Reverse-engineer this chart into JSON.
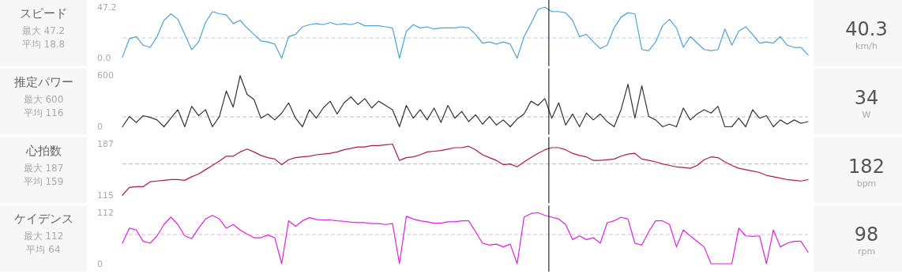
{
  "chart_data": [
    {
      "type": "line",
      "title": "スピード",
      "annotations": [
        "最大 47.2",
        "平均 18.8",
        "40.3",
        "km/h"
      ],
      "categories": [
        null,
        null,
        null,
        null,
        null,
        null,
        null,
        null,
        null,
        null,
        null,
        null,
        null,
        null,
        null,
        null,
        null,
        null,
        null,
        null,
        null,
        null,
        null,
        null,
        null,
        null,
        null,
        null,
        null,
        null,
        null,
        null,
        null,
        null,
        null,
        null,
        null,
        null,
        null,
        null,
        null,
        null,
        null,
        null,
        null,
        null,
        null,
        null,
        null,
        null,
        null,
        null,
        null,
        null,
        null,
        null,
        null,
        null,
        null,
        null,
        null,
        null,
        null,
        null,
        null,
        null,
        null,
        null,
        null,
        null,
        null,
        null,
        null,
        null,
        null,
        null,
        null,
        null,
        null,
        null,
        null,
        null,
        null,
        null,
        null,
        null,
        null,
        null,
        null,
        null,
        null,
        null,
        null,
        null,
        null,
        null,
        null,
        null,
        null,
        null
      ],
      "ylim": [
        0,
        47.2
      ],
      "yticks": [
        {
          "value": 0,
          "label": "0.0"
        },
        47.2
      ],
      "series": [
        {
          "color": "#4ba3d6",
          "values": [
            1,
            18,
            20,
            12,
            10,
            20,
            35,
            41,
            36,
            22,
            8,
            15,
            33,
            43,
            41,
            40,
            32,
            35,
            28,
            22,
            16,
            15,
            13,
            0,
            20,
            22,
            29,
            31,
            32,
            31,
            33,
            31,
            32,
            31,
            33,
            30,
            30,
            30,
            29,
            28,
            0,
            25,
            31,
            28,
            29,
            27,
            28,
            28,
            28,
            29,
            28,
            22,
            14,
            15,
            13,
            15,
            13,
            0,
            20,
            32,
            45,
            47.2,
            43,
            43,
            42,
            35,
            20,
            22,
            15,
            9,
            12,
            28,
            38,
            42,
            41,
            8,
            7,
            15,
            30,
            36,
            28,
            10,
            20,
            14,
            8,
            7,
            8,
            27,
            12,
            25,
            29,
            22,
            14,
            15,
            14,
            20,
            12,
            10,
            10,
            3
          ]
        }
      ],
      "ref_lines": [
        {
          "axis": "y",
          "value": 18.8,
          "color": "#a9d6ee",
          "line_style": "dashed"
        }
      ]
    },
    {
      "type": "line",
      "title": "推定パワー",
      "annotations": [
        "最大 600",
        "平均 116",
        "34",
        "W"
      ],
      "categories": [
        null,
        null,
        null,
        null,
        null,
        null,
        null,
        null,
        null,
        null,
        null,
        null,
        null,
        null,
        null,
        null,
        null,
        null,
        null,
        null,
        null,
        null,
        null,
        null,
        null,
        null,
        null,
        null,
        null,
        null,
        null,
        null,
        null,
        null,
        null,
        null,
        null,
        null,
        null,
        null,
        null,
        null,
        null,
        null,
        null,
        null,
        null,
        null,
        null,
        null,
        null,
        null,
        null,
        null,
        null,
        null,
        null,
        null,
        null,
        null,
        null,
        null,
        null,
        null,
        null,
        null,
        null,
        null,
        null,
        null,
        null,
        null,
        null,
        null,
        null,
        null,
        null,
        null,
        null,
        null,
        null,
        null,
        null,
        null,
        null,
        null,
        null,
        null,
        null,
        null,
        null,
        null,
        null,
        null,
        null,
        null,
        null,
        null,
        null,
        null
      ],
      "ylim": [
        0,
        600
      ],
      "yticks": [
        0,
        600
      ],
      "series": [
        {
          "color": "#333333",
          "values": [
            0,
            120,
            50,
            130,
            110,
            80,
            0,
            100,
            200,
            0,
            240,
            130,
            200,
            0,
            120,
            420,
            230,
            600,
            380,
            320,
            100,
            150,
            80,
            160,
            280,
            100,
            0,
            200,
            100,
            220,
            300,
            150,
            280,
            350,
            260,
            330,
            220,
            300,
            250,
            200,
            0,
            250,
            100,
            200,
            80,
            220,
            50,
            250,
            100,
            180,
            60,
            140,
            30,
            120,
            20,
            80,
            0,
            90,
            150,
            300,
            250,
            330,
            100,
            280,
            20,
            150,
            0,
            160,
            80,
            150,
            60,
            0,
            200,
            500,
            100,
            480,
            120,
            80,
            0,
            30,
            0,
            220,
            80,
            150,
            200,
            160,
            240,
            0,
            0,
            100,
            0,
            200,
            100,
            130,
            0,
            80,
            30,
            80,
            40,
            60
          ]
        }
      ],
      "ref_lines": [
        {
          "axis": "y",
          "value": 116,
          "color": "#bbbbbb",
          "line_style": "dashed"
        }
      ]
    },
    {
      "type": "line",
      "title": "心拍数",
      "annotations": [
        "最大 187",
        "平均 159",
        "182",
        "bpm"
      ],
      "categories": [
        null,
        null,
        null,
        null,
        null,
        null,
        null,
        null,
        null,
        null,
        null,
        null,
        null,
        null,
        null,
        null,
        null,
        null,
        null,
        null,
        null,
        null,
        null,
        null,
        null,
        null,
        null,
        null,
        null,
        null,
        null,
        null,
        null,
        null,
        null,
        null,
        null,
        null,
        null,
        null,
        null,
        null,
        null,
        null,
        null,
        null,
        null,
        null,
        null,
        null,
        null,
        null,
        null,
        null,
        null,
        null,
        null,
        null,
        null,
        null,
        null,
        null,
        null,
        null,
        null,
        null,
        null,
        null,
        null,
        null,
        null,
        null,
        null,
        null,
        null,
        null,
        null,
        null,
        null,
        null,
        null,
        null,
        null,
        null,
        null,
        null,
        null,
        null,
        null,
        null,
        null,
        null,
        null,
        null,
        null,
        null,
        null,
        null,
        null,
        null
      ],
      "ylim": [
        115,
        187
      ],
      "yticks": [
        115,
        187
      ],
      "series": [
        {
          "color": "#b0184a",
          "values": [
            115,
            126,
            127,
            127,
            134,
            135,
            136,
            137,
            137,
            136,
            141,
            145,
            151,
            157,
            163,
            170,
            170,
            176,
            180,
            176,
            171,
            168,
            166,
            158,
            165,
            168,
            169,
            170,
            172,
            173,
            174,
            176,
            179,
            181,
            183,
            183,
            185,
            185,
            186,
            187,
            164,
            168,
            169,
            172,
            176,
            177,
            178,
            180,
            182,
            182,
            184,
            179,
            172,
            168,
            164,
            158,
            159,
            155,
            162,
            168,
            174,
            179,
            182,
            182,
            179,
            174,
            171,
            169,
            164,
            164,
            165,
            166,
            170,
            173,
            174,
            166,
            164,
            162,
            159,
            157,
            155,
            154,
            153,
            157,
            165,
            169,
            168,
            162,
            157,
            153,
            151,
            149,
            147,
            143,
            141,
            139,
            137,
            136,
            135,
            137
          ]
        }
      ],
      "ref_lines": [
        {
          "axis": "y",
          "value": 159,
          "color": "#e3a3b8",
          "line_style": "dashed"
        }
      ]
    },
    {
      "type": "line",
      "title": "ケイデンス",
      "annotations": [
        "最大 112",
        "平均 64",
        "98",
        "rpm"
      ],
      "categories": [
        null,
        null,
        null,
        null,
        null,
        null,
        null,
        null,
        null,
        null,
        null,
        null,
        null,
        null,
        null,
        null,
        null,
        null,
        null,
        null,
        null,
        null,
        null,
        null,
        null,
        null,
        null,
        null,
        null,
        null,
        null,
        null,
        null,
        null,
        null,
        null,
        null,
        null,
        null,
        null,
        null,
        null,
        null,
        null,
        null,
        null,
        null,
        null,
        null,
        null,
        null,
        null,
        null,
        null,
        null,
        null,
        null,
        null,
        null,
        null,
        null,
        null,
        null,
        null,
        null,
        null,
        null,
        null,
        null,
        null,
        null,
        null,
        null,
        null,
        null,
        null,
        null,
        null,
        null,
        null,
        null,
        null,
        null,
        null,
        null,
        null,
        null,
        null,
        null,
        null,
        null,
        null,
        null,
        null,
        null,
        null,
        null,
        null,
        null,
        null
      ],
      "ylim": [
        0,
        112
      ],
      "yticks": [
        0,
        112
      ],
      "series": [
        {
          "color": "#e020e0",
          "values": [
            45,
            78,
            74,
            49,
            45,
            61,
            86,
            102,
            86,
            61,
            55,
            78,
            98,
            106,
            98,
            78,
            86,
            74,
            65,
            57,
            57,
            63,
            57,
            0,
            94,
            82,
            94,
            101,
            97,
            96,
            96,
            94,
            93,
            91,
            90,
            90,
            88,
            88,
            86,
            88,
            0,
            104,
            98,
            94,
            92,
            89,
            89,
            92,
            92,
            94,
            94,
            70,
            45,
            41,
            43,
            37,
            43,
            0,
            102,
            110,
            112,
            106,
            102,
            98,
            86,
            53,
            61,
            53,
            57,
            45,
            90,
            94,
            102,
            98,
            45,
            41,
            70,
            94,
            94,
            86,
            37,
            74,
            61,
            49,
            37,
            0,
            0,
            0,
            0,
            78,
            61,
            60,
            61,
            0,
            74,
            37,
            45,
            49,
            49,
            25
          ]
        }
      ],
      "ref_lines": [
        {
          "axis": "y",
          "value": 64,
          "color": "#eeaaee",
          "line_style": "dashed"
        }
      ]
    }
  ]
}
